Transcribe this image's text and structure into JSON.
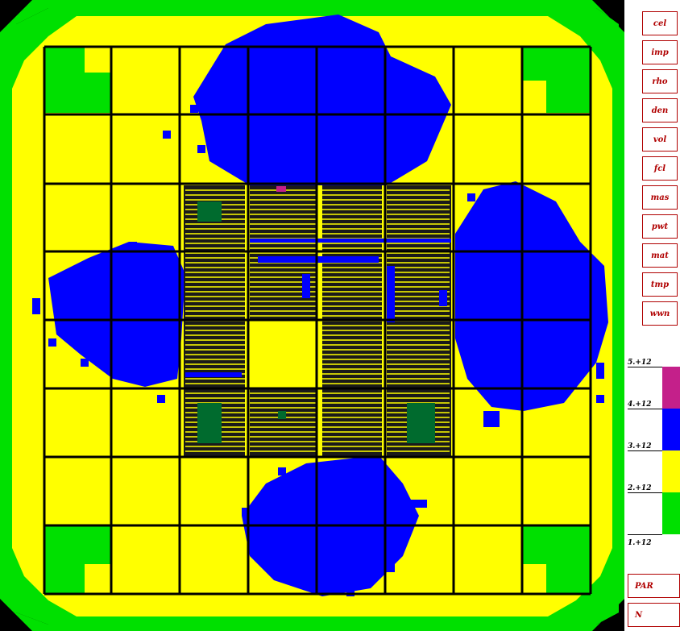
{
  "menu": {
    "items": [
      {
        "label": "cel"
      },
      {
        "label": "imp"
      },
      {
        "label": "rho"
      },
      {
        "label": "den"
      },
      {
        "label": "vol"
      },
      {
        "label": "fcl"
      },
      {
        "label": "mas"
      },
      {
        "label": "pwt"
      },
      {
        "label": "mat"
      },
      {
        "label": "tmp"
      },
      {
        "label": "wwn"
      }
    ],
    "bottom": [
      {
        "label": "PAR"
      },
      {
        "label": "N"
      }
    ]
  },
  "legend": {
    "labels": [
      "5.+12",
      "4.+12",
      "3.+12",
      "2.+12",
      "1.+12"
    ],
    "colors": [
      "#c4208a",
      "#0000ff",
      "#ffff00",
      "#00e000"
    ]
  },
  "colors": {
    "background": "#000000",
    "level1": "#00e000",
    "level2": "#ffff00",
    "level3": "#0000ff",
    "level4": "#c4208a",
    "grid": "#000000",
    "fuel_dark": "#1a1a1a",
    "fuel_green": "#006b2e",
    "menu_border": "#b00000"
  }
}
